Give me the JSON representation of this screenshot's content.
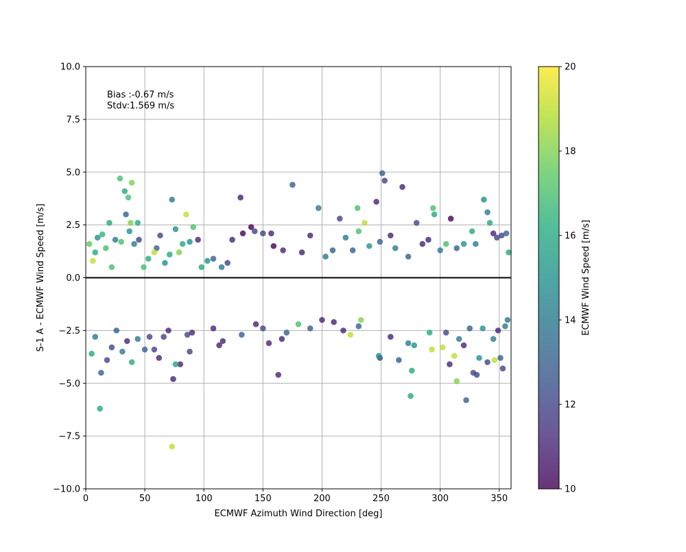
{
  "chart_data": {
    "type": "scatter",
    "xlabel": "ECMWF Azimuth Wind Direction [deg]",
    "ylabel": "S-1 A - ECMWF Wind Speed [m/s]",
    "xlim": [
      0,
      360
    ],
    "ylim": [
      -10,
      10
    ],
    "x_ticks": [
      "0",
      "50",
      "100",
      "150",
      "200",
      "250",
      "300",
      "350"
    ],
    "y_ticks": [
      "−10.0",
      "−7.5",
      "−5.0",
      "−2.5",
      "0.0",
      "2.5",
      "5.0",
      "7.5",
      "10.0"
    ],
    "grid": true,
    "zero_line": 0,
    "annotation": [
      "Bias :-0.67 m/s",
      "Stdv:1.569 m/s"
    ],
    "colorbar": {
      "label": "ECMWF Wind Speed [m/s]",
      "range": [
        10,
        20
      ],
      "ticks": [
        "10",
        "12",
        "14",
        "16",
        "18",
        "20"
      ],
      "colormap": "viridis"
    },
    "points": [
      [
        3,
        1.6,
        17.5
      ],
      [
        6,
        0.8,
        19
      ],
      [
        8,
        1.2,
        16
      ],
      [
        10,
        1.9,
        15
      ],
      [
        14,
        2.05,
        16.5
      ],
      [
        17,
        1.4,
        17
      ],
      [
        20,
        2.6,
        16
      ],
      [
        22,
        0.5,
        17
      ],
      [
        25,
        1.8,
        14
      ],
      [
        29,
        4.7,
        17
      ],
      [
        33,
        4.1,
        16
      ],
      [
        39,
        4.5,
        18
      ],
      [
        36,
        3.8,
        17
      ],
      [
        34,
        3.0,
        13
      ],
      [
        38,
        2.6,
        18
      ],
      [
        44,
        2.6,
        16
      ],
      [
        30,
        1.7,
        17
      ],
      [
        37,
        2.2,
        15
      ],
      [
        41,
        1.6,
        14
      ],
      [
        45,
        1.8,
        12
      ],
      [
        49,
        0.5,
        17
      ],
      [
        53,
        0.9,
        16
      ],
      [
        58,
        1.2,
        19
      ],
      [
        60,
        1.4,
        13
      ],
      [
        63,
        2.0,
        12
      ],
      [
        67,
        0.7,
        15
      ],
      [
        71,
        1.1,
        16
      ],
      [
        73,
        3.7,
        14
      ],
      [
        76,
        2.3,
        15
      ],
      [
        79,
        1.2,
        18
      ],
      [
        82,
        1.6,
        16
      ],
      [
        85,
        3.0,
        19
      ],
      [
        88,
        1.7,
        15
      ],
      [
        91,
        2.4,
        17
      ],
      [
        95,
        1.8,
        11
      ],
      [
        98,
        0.5,
        16
      ],
      [
        103,
        0.8,
        15
      ],
      [
        108,
        0.9,
        13
      ],
      [
        115,
        0.5,
        14
      ],
      [
        120,
        0.7,
        12
      ],
      [
        124,
        1.8,
        11
      ],
      [
        131,
        3.8,
        11
      ],
      [
        133,
        2.1,
        10
      ],
      [
        140,
        2.4,
        10
      ],
      [
        143,
        2.2,
        12
      ],
      [
        150,
        2.1,
        12
      ],
      [
        157,
        2.1,
        11
      ],
      [
        159,
        1.5,
        10
      ],
      [
        167,
        1.3,
        11
      ],
      [
        175,
        4.4,
        13
      ],
      [
        183,
        1.2,
        11
      ],
      [
        190,
        2.0,
        11
      ],
      [
        197,
        3.3,
        14
      ],
      [
        203,
        1.0,
        14
      ],
      [
        209,
        1.3,
        13
      ],
      [
        215,
        2.8,
        12
      ],
      [
        220,
        1.9,
        14
      ],
      [
        226,
        1.3,
        13
      ],
      [
        231,
        2.2,
        17
      ],
      [
        230,
        3.3,
        17
      ],
      [
        236,
        2.6,
        19
      ],
      [
        240,
        1.5,
        15
      ],
      [
        246,
        3.6,
        11
      ],
      [
        249,
        1.7,
        13
      ],
      [
        251,
        4.95,
        13
      ],
      [
        253,
        4.6,
        12
      ],
      [
        258,
        2.0,
        11
      ],
      [
        262,
        1.4,
        14
      ],
      [
        268,
        4.3,
        11
      ],
      [
        273,
        1.0,
        13
      ],
      [
        280,
        2.6,
        12
      ],
      [
        285,
        1.6,
        11
      ],
      [
        290,
        1.8,
        11
      ],
      [
        294,
        3.3,
        17
      ],
      [
        295,
        3.0,
        16
      ],
      [
        300,
        1.3,
        14
      ],
      [
        305,
        1.6,
        17
      ],
      [
        309,
        2.8,
        10
      ],
      [
        314,
        1.4,
        13
      ],
      [
        320,
        1.6,
        15
      ],
      [
        327,
        2.2,
        16
      ],
      [
        330,
        1.6,
        14
      ],
      [
        337,
        3.7,
        15
      ],
      [
        340,
        3.1,
        14
      ],
      [
        342,
        2.6,
        16
      ],
      [
        345,
        2.1,
        11
      ],
      [
        348,
        1.9,
        12
      ],
      [
        352,
        2.0,
        12
      ],
      [
        356,
        2.1,
        13
      ],
      [
        358,
        1.2,
        16
      ],
      [
        5,
        -3.6,
        16
      ],
      [
        8,
        -2.8,
        14
      ],
      [
        12,
        -6.2,
        16
      ],
      [
        13,
        -4.5,
        13
      ],
      [
        18,
        -3.9,
        12
      ],
      [
        22,
        -3.3,
        12
      ],
      [
        26,
        -2.5,
        13
      ],
      [
        31,
        -3.5,
        14
      ],
      [
        35,
        -3.0,
        11
      ],
      [
        39,
        -4.0,
        16
      ],
      [
        44,
        -2.9,
        14
      ],
      [
        50,
        -3.4,
        13
      ],
      [
        54,
        -2.8,
        12
      ],
      [
        58,
        -3.4,
        12
      ],
      [
        62,
        -3.8,
        11
      ],
      [
        66,
        -2.8,
        12
      ],
      [
        70,
        -2.5,
        11
      ],
      [
        74,
        -4.8,
        11
      ],
      [
        76,
        -4.1,
        16
      ],
      [
        73,
        -8.0,
        19
      ],
      [
        80,
        -4.1,
        11
      ],
      [
        86,
        -2.7,
        12
      ],
      [
        88,
        -3.5,
        12
      ],
      [
        90,
        -2.6,
        11
      ],
      [
        108,
        -2.4,
        11
      ],
      [
        113,
        -3.2,
        11
      ],
      [
        116,
        -3.0,
        11
      ],
      [
        132,
        -2.7,
        13
      ],
      [
        144,
        -2.2,
        11
      ],
      [
        150,
        -2.4,
        12
      ],
      [
        155,
        -3.1,
        11
      ],
      [
        163,
        -4.6,
        11
      ],
      [
        166,
        -2.9,
        11
      ],
      [
        170,
        -2.6,
        13
      ],
      [
        180,
        -2.2,
        17
      ],
      [
        190,
        -2.4,
        13
      ],
      [
        200,
        -2.0,
        11
      ],
      [
        210,
        -2.1,
        11
      ],
      [
        218,
        -2.5,
        11
      ],
      [
        224,
        -2.7,
        19
      ],
      [
        231,
        -2.3,
        13
      ],
      [
        233,
        -2.0,
        18
      ],
      [
        248,
        -3.7,
        15
      ],
      [
        249,
        -3.8,
        12
      ],
      [
        258,
        -2.8,
        11
      ],
      [
        265,
        -3.9,
        13
      ],
      [
        273,
        -3.1,
        14
      ],
      [
        276,
        -4.4,
        16
      ],
      [
        275,
        -5.6,
        16
      ],
      [
        278,
        -3.2,
        15
      ],
      [
        291,
        -2.6,
        16
      ],
      [
        293,
        -3.4,
        19
      ],
      [
        302,
        -3.3,
        19
      ],
      [
        305,
        -2.6,
        12
      ],
      [
        308,
        -4.1,
        11
      ],
      [
        312,
        -3.7,
        19
      ],
      [
        314,
        -4.9,
        18
      ],
      [
        316,
        -2.9,
        14
      ],
      [
        320,
        -3.2,
        11
      ],
      [
        322,
        -5.8,
        13
      ],
      [
        325,
        -2.4,
        13
      ],
      [
        328,
        -4.5,
        12
      ],
      [
        331,
        -4.6,
        12
      ],
      [
        333,
        -3.8,
        15
      ],
      [
        336,
        -2.4,
        15
      ],
      [
        340,
        -4.0,
        12
      ],
      [
        345,
        -2.9,
        14
      ],
      [
        346,
        -3.9,
        19
      ],
      [
        349,
        -2.5,
        11
      ],
      [
        351,
        -3.8,
        13
      ],
      [
        353,
        -4.3,
        12
      ],
      [
        355,
        -2.3,
        14
      ],
      [
        357,
        -2.0,
        14
      ]
    ]
  }
}
